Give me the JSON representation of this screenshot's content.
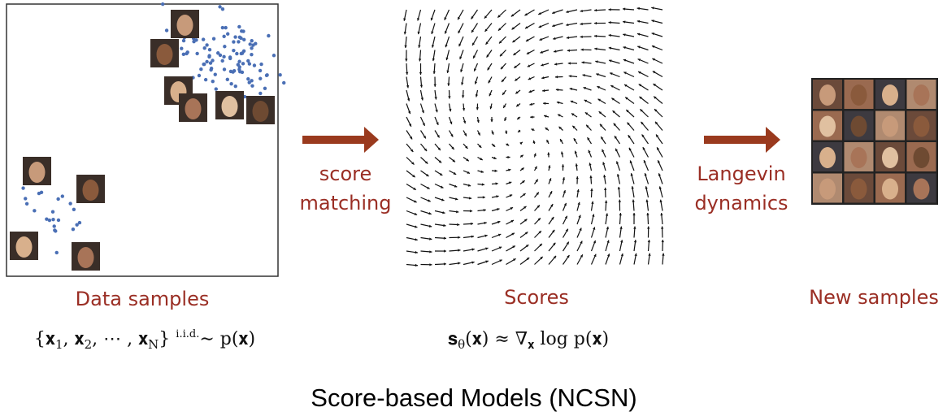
{
  "panels": {
    "data": {
      "label": "Data samples",
      "formula": [
        {
          "text": "{𝐱"
        },
        {
          "sub": "1"
        },
        {
          "text": ", 𝐱"
        },
        {
          "sub": "2"
        },
        {
          "text": ", ⋯ , 𝐱"
        },
        {
          "sub": "N"
        },
        {
          "text": "} "
        },
        {
          "sup": "i.i.d."
        },
        {
          "text": "∼ p(𝐱)"
        }
      ]
    },
    "scores": {
      "label": "Scores",
      "formula": [
        {
          "text": "𝐬"
        },
        {
          "sub": "θ"
        },
        {
          "text": "(𝐱) ≈ ∇"
        },
        {
          "sub": "𝐱"
        },
        {
          "text": " log p(𝐱)"
        }
      ]
    },
    "samples": {
      "label": "New samples"
    }
  },
  "arrows": [
    {
      "lines": [
        "score",
        "matching"
      ]
    },
    {
      "lines": [
        "Langevin",
        "dynamics"
      ]
    }
  ],
  "title": "Score-based Models (NCSN)"
}
